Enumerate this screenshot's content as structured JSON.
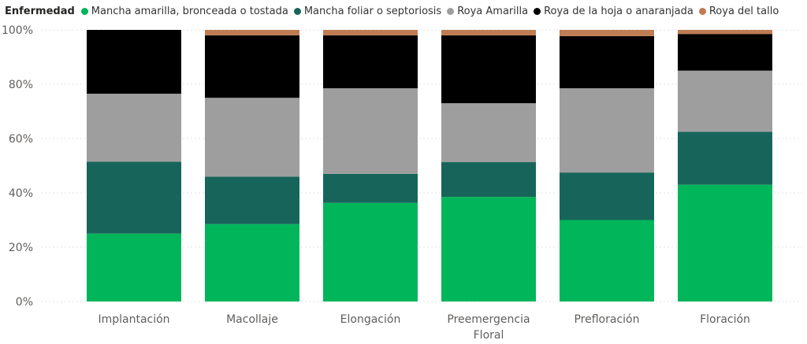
{
  "chart_data": {
    "type": "bar",
    "stacked": "100%",
    "legend_title": "Enfermedad",
    "legend_position": "top-left",
    "grid": true,
    "ylim": [
      0,
      100
    ],
    "y_ticks": [
      "0%",
      "20%",
      "40%",
      "60%",
      "80%",
      "100%"
    ],
    "categories": [
      [
        "Implantación"
      ],
      [
        "Macollaje"
      ],
      [
        "Elongación"
      ],
      [
        "Preemergencia",
        "Floral"
      ],
      [
        "Prefloración"
      ],
      [
        "Floración"
      ]
    ],
    "series": [
      {
        "name": "Mancha amarilla, bronceada o tostada",
        "color": "#01b65a",
        "values": [
          25,
          28.5,
          36.3,
          38.5,
          30,
          43
        ]
      },
      {
        "name": "Mancha foliar o septoriosis",
        "color": "#17655a",
        "values": [
          26.5,
          17.5,
          10.7,
          12.8,
          17.5,
          19.5
        ]
      },
      {
        "name": "Roya Amarilla",
        "color": "#9e9e9e",
        "values": [
          25,
          29,
          31.5,
          21.7,
          31,
          22.5
        ]
      },
      {
        "name": "Roya de la hoja o anaranjada",
        "color": "#000000",
        "values": [
          23.5,
          23,
          19.5,
          25,
          19.2,
          13.5
        ]
      },
      {
        "name": "Roya del tallo",
        "color": "#c07c52",
        "values": [
          0,
          2,
          2,
          2,
          2.3,
          1.5
        ]
      }
    ]
  }
}
